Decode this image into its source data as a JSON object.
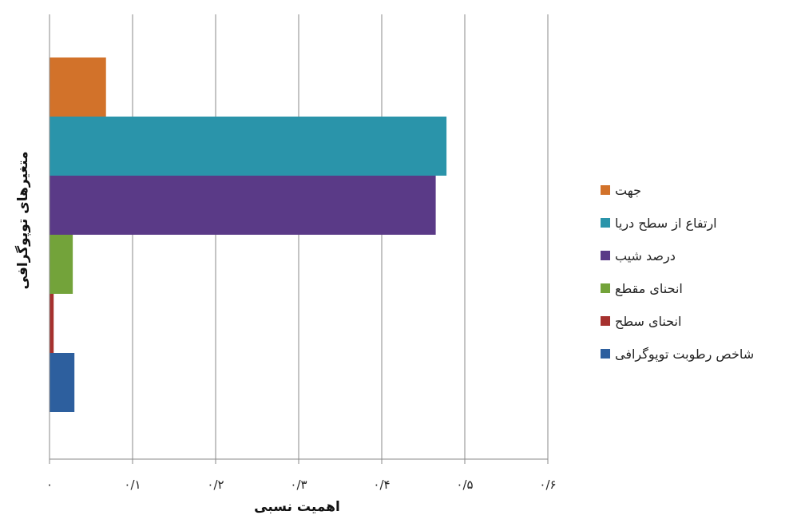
{
  "chart_data": {
    "type": "bar",
    "orientation": "horizontal",
    "title": "",
    "xlabel": "اهمیت نسبی",
    "ylabel": "متغیرهای توپوگرافی",
    "xlim": [
      0,
      0.6
    ],
    "x_ticks": [
      0,
      0.1,
      0.2,
      0.3,
      0.4,
      0.5,
      0.6
    ],
    "x_tick_labels": [
      "۰",
      "۰/۱",
      "۰/۲",
      "۰/۳",
      "۰/۴",
      "۰/۵",
      "۰/۶"
    ],
    "grid": "vertical",
    "legend_position": "right",
    "series": [
      {
        "name": "جهت",
        "value": 0.068,
        "color": "#D2722A"
      },
      {
        "name": "ارتفاع از سطح دریا",
        "value": 0.478,
        "color": "#2A94AA"
      },
      {
        "name": "درصد شیب",
        "value": 0.465,
        "color": "#5A3A87"
      },
      {
        "name": "انحنای مقطع",
        "value": 0.028,
        "color": "#73A33A"
      },
      {
        "name": "انحنای سطح",
        "value": 0.005,
        "color": "#A6312E"
      },
      {
        "name": "شاخص رطوبت توپوگرافی",
        "value": 0.03,
        "color": "#2D5F9E"
      }
    ]
  }
}
